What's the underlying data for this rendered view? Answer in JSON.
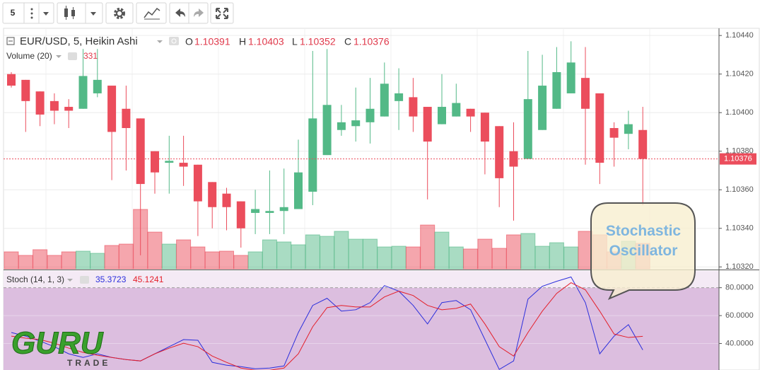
{
  "toolbar": {
    "interval": "5"
  },
  "annotation": "Stochastic Oscillator",
  "logo": {
    "main": "GURU",
    "sub": "TRADE"
  },
  "chart_data": [
    {
      "type": "candlestick",
      "title": "EUR/USD, 5, Heikin Ashi",
      "ohlc_labels": [
        "O",
        "H",
        "L",
        "C"
      ],
      "up_color": "#53b987",
      "down_color": "#eb4d5c",
      "open": [
        1.1042,
        1.10417,
        1.10411,
        1.10406,
        1.10403,
        1.10402,
        1.1041,
        1.10414,
        1.10402,
        1.10397,
        1.1038,
        1.10374,
        1.10374,
        1.10373,
        1.10364,
        1.10358,
        1.10354,
        1.10348,
        1.10348,
        1.10349,
        1.1035,
        1.10359,
        1.10378,
        1.10391,
        1.10393,
        1.10395,
        1.10398,
        1.10406,
        1.10408,
        1.10403,
        1.10394,
        1.10398,
        1.10402,
        1.104,
        1.10393,
        1.1038,
        1.10376,
        1.10391,
        1.10402,
        1.1041,
        1.10418,
        1.1041,
        1.10392,
        1.10389,
        1.10391
      ],
      "high": [
        1.10421,
        1.10417,
        1.10411,
        1.1041,
        1.10407,
        1.10433,
        1.10433,
        1.10414,
        1.10414,
        1.10397,
        1.1038,
        1.10388,
        1.10388,
        1.10373,
        1.10364,
        1.10361,
        1.10354,
        1.1036,
        1.1037,
        1.10371,
        1.10386,
        1.10432,
        1.10433,
        1.10404,
        1.10413,
        1.10418,
        1.10426,
        1.10423,
        1.10418,
        1.10403,
        1.1042,
        1.10415,
        1.10402,
        1.104,
        1.10393,
        1.10395,
        1.10432,
        1.1043,
        1.10434,
        1.10437,
        1.10434,
        1.1041,
        1.10395,
        1.10401,
        1.10403
      ],
      "low": [
        1.10413,
        1.1039,
        1.10393,
        1.10394,
        1.10392,
        1.10402,
        1.10408,
        1.10365,
        1.1037,
        1.10326,
        1.10358,
        1.10358,
        1.10362,
        1.10336,
        1.1034,
        1.10339,
        1.1033,
        1.10337,
        1.10337,
        1.10337,
        1.1035,
        1.10352,
        1.10378,
        1.10388,
        1.10385,
        1.10384,
        1.10398,
        1.10391,
        1.1039,
        1.10355,
        1.10394,
        1.10398,
        1.1039,
        1.10368,
        1.10351,
        1.10344,
        1.10376,
        1.10391,
        1.10402,
        1.1041,
        1.10373,
        1.10363,
        1.10372,
        1.10381,
        1.10352
      ],
      "close": [
        1.10414,
        1.10406,
        1.10399,
        1.10401,
        1.10401,
        1.10419,
        1.10417,
        1.1039,
        1.10392,
        1.10363,
        1.10369,
        1.10375,
        1.10372,
        1.10354,
        1.10351,
        1.10351,
        1.1034,
        1.1035,
        1.10349,
        1.10351,
        1.10369,
        1.10397,
        1.10404,
        1.10395,
        1.10396,
        1.10402,
        1.10415,
        1.1041,
        1.10398,
        1.10385,
        1.10403,
        1.10405,
        1.10398,
        1.10385,
        1.10366,
        1.10372,
        1.10407,
        1.10414,
        1.10421,
        1.10426,
        1.10402,
        1.10374,
        1.10387,
        1.10394,
        1.10376
      ],
      "volume": {
        "name": "Volume (20)",
        "values": [
          221,
          175,
          249,
          175,
          221,
          230,
          202,
          304,
          322,
          773,
          478,
          322,
          377,
          285,
          221,
          230,
          175,
          221,
          377,
          350,
          313,
          442,
          423,
          488,
          386,
          386,
          285,
          294,
          285,
          570,
          478,
          285,
          258,
          386,
          267,
          442,
          460,
          294,
          340,
          285,
          488,
          442,
          221,
          359,
          331
        ]
      },
      "ylim": [
        1.10319,
        1.10443
      ],
      "yticks": [
        {
          "value": 1.1044,
          "label": "1.10440"
        },
        {
          "value": 1.1042,
          "label": "1.10420"
        },
        {
          "value": 1.104,
          "label": "1.10400"
        },
        {
          "value": 1.1038,
          "label": "1.10380"
        },
        {
          "value": 1.1036,
          "label": "1.10360"
        },
        {
          "value": 1.1034,
          "label": "1.10340"
        },
        {
          "value": 1.1032,
          "label": "1.10320"
        }
      ],
      "grid": true
    },
    {
      "type": "line",
      "title": "Stoch (14, 1, 3)",
      "series": [
        {
          "color": "#2b2fdc",
          "values": [
            47.9,
            45.3,
            41.7,
            37.7,
            32.6,
            30.0,
            32.6,
            30.0,
            28.5,
            27.5,
            32.6,
            37.7,
            42.8,
            42.3,
            26.5,
            24.4,
            23.4,
            21.9,
            22.4,
            23.9,
            47.9,
            67.3,
            72.4,
            63.2,
            64.2,
            69.3,
            81.5,
            77.5,
            67.3,
            54.0,
            69.3,
            70.8,
            64.2,
            42.8,
            21.4,
            27.5,
            71.8,
            81.0,
            84.6,
            87.7,
            69.3,
            32.6,
            45.3,
            53.5,
            35.3723
          ]
        },
        {
          "color": "#e41f2a",
          "values": [
            45.3,
            43.8,
            42.8,
            40.2,
            36.7,
            33.6,
            31.6,
            30.0,
            28.5,
            27.5,
            32.6,
            36.7,
            40.2,
            37.7,
            31.0,
            26.5,
            22.4,
            20.8,
            20.8,
            22.4,
            32.6,
            52.0,
            65.7,
            67.3,
            66.2,
            66.2,
            73.4,
            77.5,
            74.4,
            67.3,
            64.2,
            65.2,
            68.3,
            54.0,
            37.7,
            31.0,
            47.9,
            63.2,
            75.9,
            83.6,
            78.5,
            63.2,
            46.8,
            44.3,
            45.1241
          ]
        }
      ],
      "ylim": [
        21,
        92
      ],
      "yticks": [
        {
          "value": 80,
          "label": "80.0000"
        },
        {
          "value": 60,
          "label": "60.0000"
        },
        {
          "value": 40,
          "label": "40.0000"
        }
      ],
      "band_color": "#dcbedf"
    }
  ]
}
